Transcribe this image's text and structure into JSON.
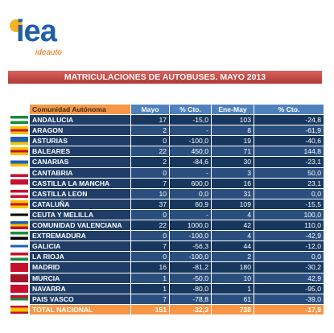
{
  "logo": {
    "name": "iea",
    "tagline": "ideauto"
  },
  "title": "MATRICULACIONES DE AUTOBUSES. MAYO 2013",
  "table": {
    "header": [
      "Comunidad Autónoma",
      "Mayo",
      "% Cto.",
      "Ene-May",
      "% Cto."
    ],
    "rows": [
      [
        "ANDALUCIA",
        "17",
        "-15,0",
        "103",
        "-24,8"
      ],
      [
        "ARAGON",
        "2",
        "-",
        "8",
        "-61,9"
      ],
      [
        "ASTURIAS",
        "0",
        "-100,0",
        "19",
        "-40,6"
      ],
      [
        "BALEARES",
        "22",
        "450,0",
        "71",
        "144,8"
      ],
      [
        "CANARIAS",
        "2",
        "-84,6",
        "30",
        "-23,1"
      ],
      [
        "CANTABRIA",
        "0",
        "-",
        "3",
        "50,0"
      ],
      [
        "CASTILLA LA MANCHA",
        "7",
        "600,0",
        "16",
        "23,1"
      ],
      [
        "CASTILLA LEON",
        "10",
        "0,0",
        "31",
        "0,0"
      ],
      [
        "CATALUÑA",
        "37",
        "60,9",
        "109",
        "-15,5"
      ],
      [
        "CEUTA Y MELILLA",
        "0",
        "-",
        "4",
        "100,0"
      ],
      [
        "COMUNIDAD VALENCIANA",
        "22",
        "1000,0",
        "42",
        "110,0"
      ],
      [
        "EXTREMADURA",
        "0",
        "-100,0",
        "4",
        "-42,9"
      ],
      [
        "GALICIA",
        "7",
        "-56,3",
        "44",
        "-12,0"
      ],
      [
        "LA RIOJA",
        "0",
        "-100,0",
        "2",
        "0,0"
      ],
      [
        "MADRID",
        "16",
        "-81,2",
        "180",
        "-30,2"
      ],
      [
        "MURCIA",
        "1",
        "-50,0",
        "10",
        "42,9"
      ],
      [
        "NAVARRA",
        "1",
        "-80,0",
        "1",
        "-95,0"
      ],
      [
        "PAIS VASCO",
        "7",
        "-78,8",
        "61",
        "-39,0"
      ]
    ],
    "total": [
      "TOTAL NACIONAL",
      "151",
      "-32,3",
      "738",
      "-17,9"
    ]
  }
}
